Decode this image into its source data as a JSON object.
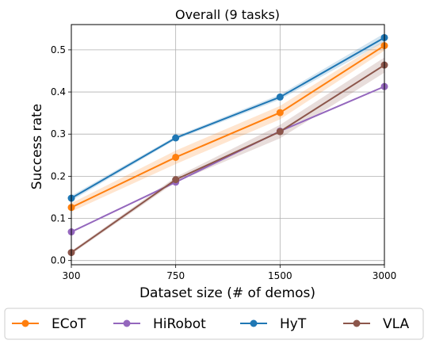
{
  "chart_data": {
    "type": "line",
    "title": "Overall (9 tasks)",
    "xlabel": "Dataset size (# of demos)",
    "ylabel": "Success rate",
    "categories": [
      "300",
      "750",
      "1500",
      "3000"
    ],
    "ylim": [
      -0.01,
      0.56
    ],
    "yticks": [
      "0.0",
      "0.1",
      "0.2",
      "0.3",
      "0.4",
      "0.5"
    ],
    "grid": true,
    "legend_position": "bottom",
    "series": [
      {
        "name": "ECoT",
        "color": "#ff7f0e",
        "values": [
          0.126,
          0.245,
          0.351,
          0.51
        ],
        "band": [
          0.01,
          0.016,
          0.016,
          0.012
        ]
      },
      {
        "name": "HiRobot",
        "color": "#9467bd",
        "values": [
          0.068,
          0.186,
          0.307,
          0.413
        ],
        "band": [
          0,
          0,
          0,
          0
        ]
      },
      {
        "name": "HyT",
        "color": "#1f77b4",
        "values": [
          0.148,
          0.291,
          0.388,
          0.529
        ],
        "band": [
          0.006,
          0.004,
          0.006,
          0.01
        ]
      },
      {
        "name": "VLA",
        "color": "#8c564b",
        "values": [
          0.019,
          0.192,
          0.306,
          0.464
        ],
        "band": [
          0.004,
          0.006,
          0.016,
          0.018
        ]
      }
    ]
  }
}
